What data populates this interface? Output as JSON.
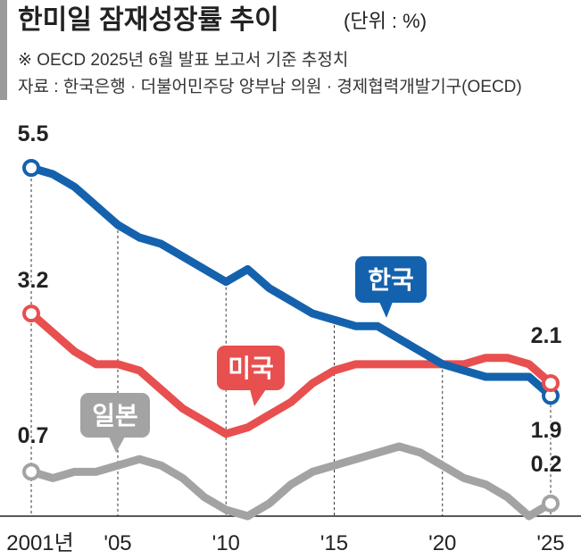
{
  "chart_data": {
    "type": "line",
    "title": "한미일 잠재성장률 추이",
    "subtitle": "(단위 : %)",
    "notes": [
      "※ OECD 2025년 6월 발표 보고서 기준 추정치",
      "자료 : 한국은행 · 더불어민주당 양부남 의원 · 경제협력개발기구(OECD)"
    ],
    "categories": [
      "2001년",
      null,
      null,
      null,
      "'05",
      null,
      null,
      null,
      null,
      "'10",
      null,
      null,
      null,
      null,
      "'15",
      null,
      null,
      null,
      null,
      "'20",
      null,
      null,
      null,
      null,
      "'25"
    ],
    "ylim": [
      0,
      5.5
    ],
    "series": [
      {
        "name": "한국",
        "color": "#1462ad",
        "values": [
          5.5,
          5.4,
          5.2,
          4.9,
          4.6,
          4.4,
          4.3,
          4.1,
          3.9,
          3.7,
          3.9,
          3.6,
          3.4,
          3.2,
          3.1,
          3.0,
          3.0,
          2.8,
          2.6,
          2.4,
          2.3,
          2.2,
          2.2,
          2.2,
          1.9
        ]
      },
      {
        "name": "미국",
        "color": "#e84f4f",
        "values": [
          3.2,
          2.9,
          2.6,
          2.4,
          2.4,
          2.3,
          2.0,
          1.7,
          1.5,
          1.3,
          1.4,
          1.6,
          1.8,
          2.1,
          2.3,
          2.4,
          2.4,
          2.4,
          2.4,
          2.4,
          2.4,
          2.5,
          2.5,
          2.4,
          2.1
        ]
      },
      {
        "name": "일본",
        "color": "#a3a3a3",
        "values": [
          0.7,
          0.6,
          0.7,
          0.7,
          0.8,
          0.9,
          0.8,
          0.6,
          0.3,
          0.1,
          0.0,
          0.2,
          0.5,
          0.7,
          0.8,
          0.9,
          1.0,
          1.1,
          1.0,
          0.8,
          0.6,
          0.5,
          0.3,
          0.0,
          0.2
        ]
      }
    ]
  }
}
